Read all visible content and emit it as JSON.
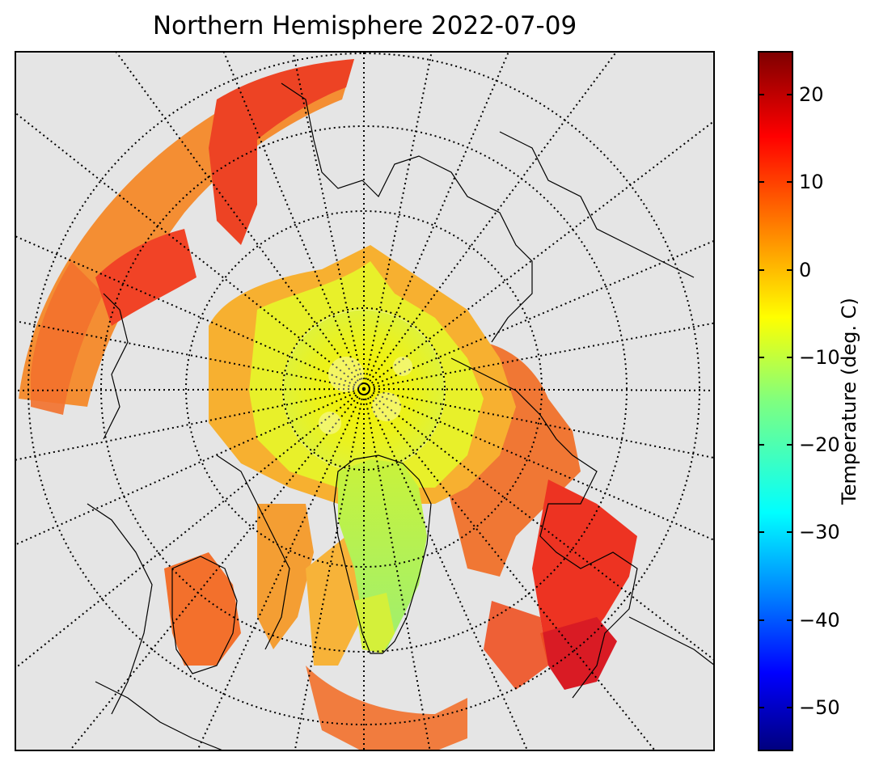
{
  "title": "Northern Hemisphere 2022-07-09",
  "colorbar": {
    "label": "Temperature (deg. C)",
    "min": -55,
    "max": 25,
    "ticks": [
      {
        "value": 20,
        "label": "20"
      },
      {
        "value": 10,
        "label": "10"
      },
      {
        "value": 0,
        "label": "0"
      },
      {
        "value": -10,
        "label": "−10"
      },
      {
        "value": -20,
        "label": "−20"
      },
      {
        "value": -30,
        "label": "−30"
      },
      {
        "value": -40,
        "label": "−40"
      },
      {
        "value": -50,
        "label": "−50"
      }
    ],
    "colormap": [
      "#00007f",
      "#0000ff",
      "#007fff",
      "#00ffff",
      "#7fff7f",
      "#ffff00",
      "#ff7f00",
      "#ff0000",
      "#7f0000"
    ]
  },
  "map": {
    "projection": "north-polar-stereographic",
    "background_color": "#e5e5e5",
    "graticule_style": "dotted"
  }
}
